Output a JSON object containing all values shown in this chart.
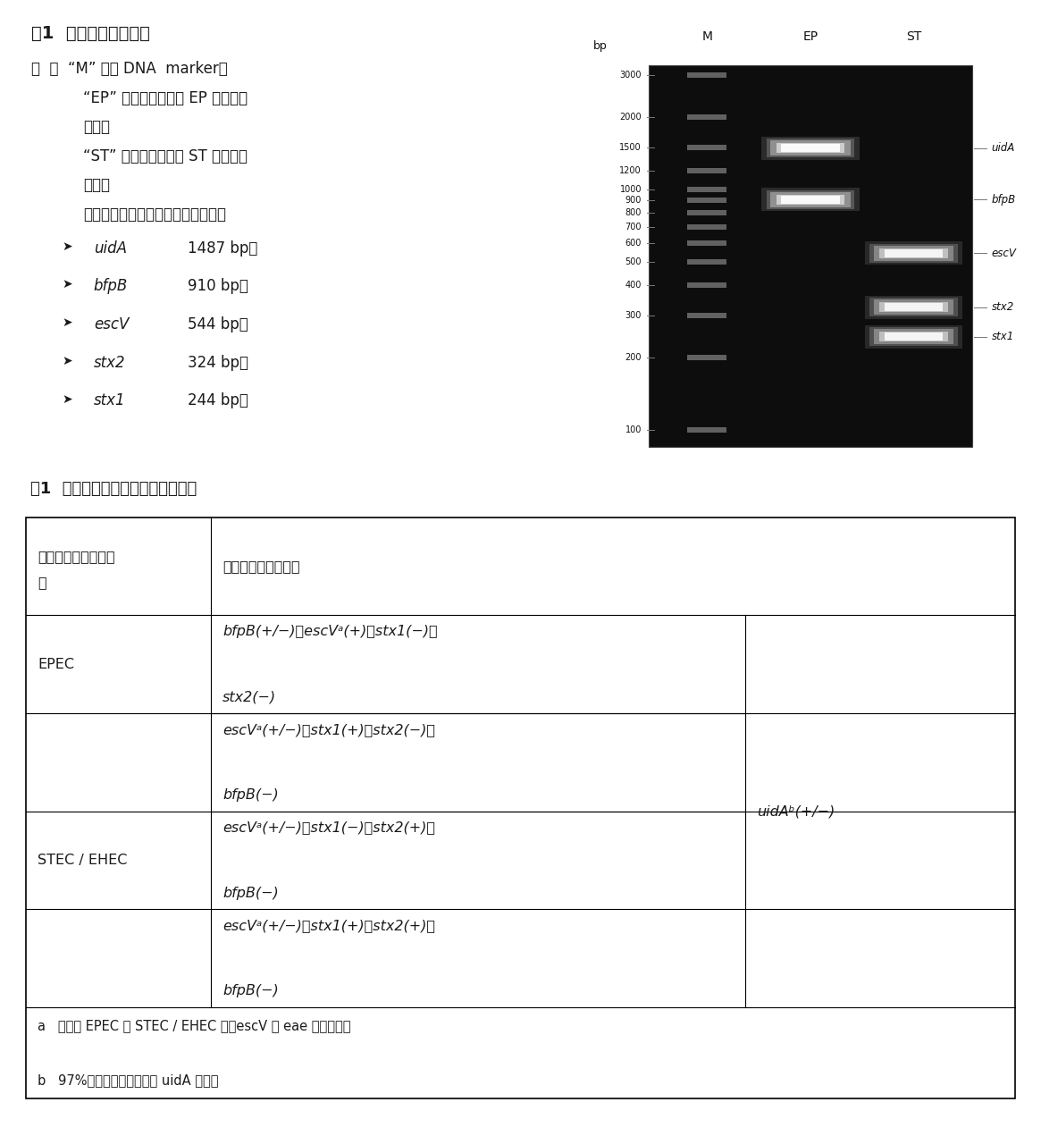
{
  "title_fig": "图1  阳性对照反应产物",
  "note_lines": [
    [
      "注  ：  “M” 表示 DNA  marker；",
      false
    ],
    [
      "“EP” 表示冻干粉试剂 EP 阳性对照",
      false
    ],
    [
      "结果；",
      false
    ],
    [
      "“ST” 表示冻干粉试剂 ST 阳性对照",
      false
    ],
    [
      "结果；",
      false
    ],
    [
      "所涉及的基因扩增产物长度分别为：",
      false
    ]
  ],
  "genes": [
    {
      "symbol": "uidA",
      "bp": "1487 bp；"
    },
    {
      "symbol": "bfpB",
      "bp": "910 bp；"
    },
    {
      "symbol": "escV",
      "bp": "544 bp；"
    },
    {
      "symbol": "stx2",
      "bp": "324 bp；"
    },
    {
      "symbol": "stx1",
      "bp": "244 bp。"
    }
  ],
  "gel_markers": [
    3000,
    2000,
    1500,
    1200,
    1000,
    900,
    800,
    700,
    600,
    500,
    400,
    300,
    200,
    100
  ],
  "gel_EP_bands": [
    1487,
    910
  ],
  "gel_ST_bands": [
    544,
    324,
    244
  ],
  "band_labels": [
    [
      "uidA",
      1487
    ],
    [
      "bfpB",
      910
    ],
    [
      "escV",
      544
    ],
    [
      "stx2",
      324
    ],
    [
      "stx1",
      244
    ]
  ],
  "table_title": "表1  反应产物目标条带与型别对照表",
  "epec_col2_line1": "bfpB(+/−)，escVᵃ(+)，stx1(−)，",
  "epec_col2_line2": "stx2(−)",
  "stec_rows": [
    [
      "escVᵃ(+/−)，stx1(+)，stx2(−)，",
      "bfpB(−)"
    ],
    [
      "escVᵃ(+/−)，stx1(−)，stx2(+)，",
      "bfpB(−)"
    ],
    [
      "escVᵃ(+/−)，stx1(+)，stx2(+)，",
      "bfpB(−)"
    ]
  ],
  "col3_text": "uidAᵇ(+/−)",
  "footnote_a": "a   在判定 EPEC 或 STEC / EHEC 时，escV 与 eae 基因等效；",
  "footnote_b": "b   97%以上大肠埃希氏菌为 uidA 阳性。",
  "bg_color": "#ffffff",
  "text_color": "#1a1a1a"
}
